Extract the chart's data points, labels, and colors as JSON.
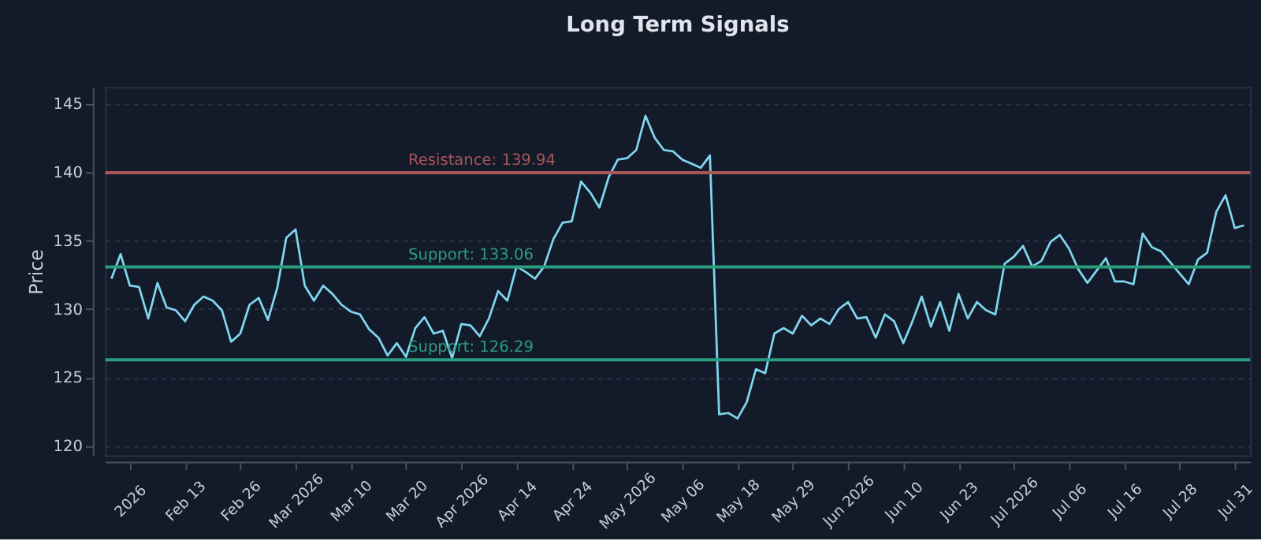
{
  "chart_data": {
    "type": "line",
    "title": "Long Term Signals",
    "ylabel": "Price",
    "categories": [
      null,
      null,
      "2026",
      null,
      null,
      null,
      null,
      null,
      "Feb 13",
      null,
      null,
      null,
      null,
      null,
      "Feb 26",
      null,
      null,
      null,
      null,
      null,
      "Mar 2026",
      null,
      null,
      null,
      null,
      null,
      "Mar 10",
      null,
      null,
      null,
      null,
      null,
      "Mar 20",
      null,
      null,
      null,
      null,
      null,
      "Apr 2026",
      null,
      null,
      null,
      null,
      null,
      "Apr 14",
      null,
      null,
      null,
      null,
      null,
      "Apr 24",
      null,
      null,
      null,
      null,
      null,
      "May 2026",
      null,
      null,
      null,
      null,
      null,
      "May 06",
      null,
      null,
      null,
      null,
      null,
      "May 18",
      null,
      null,
      null,
      null,
      null,
      "May 29",
      null,
      null,
      null,
      null,
      null,
      "Jun 2026",
      null,
      null,
      null,
      null,
      null,
      "Jun 10",
      null,
      null,
      null,
      null,
      null,
      "Jun 23",
      null,
      null,
      null,
      null,
      null,
      "Jul 2026",
      null,
      null,
      null,
      null,
      null,
      "Jul 06",
      null,
      null,
      null,
      null,
      null,
      "Jul 16",
      null,
      null,
      null,
      null,
      null,
      "Jul 28",
      null,
      null,
      null,
      null,
      null,
      "Jul 31",
      null
    ],
    "series": [
      {
        "color": "#7fd6ee",
        "values": [
          132.2,
          134.0,
          131.7,
          131.6,
          129.3,
          131.9,
          130.1,
          129.9,
          129.1,
          130.3,
          130.9,
          130.6,
          129.9,
          127.6,
          128.2,
          130.3,
          130.8,
          129.2,
          131.5,
          135.2,
          135.8,
          131.7,
          130.6,
          131.7,
          131.1,
          130.3,
          129.8,
          129.6,
          128.5,
          127.9,
          126.6,
          127.5,
          126.5,
          128.6,
          129.4,
          128.2,
          128.4,
          126.4,
          128.9,
          128.8,
          128.0,
          129.3,
          131.3,
          130.6,
          133.1,
          132.7,
          132.2,
          133.1,
          135.1,
          136.3,
          136.4,
          139.3,
          138.5,
          137.4,
          139.6,
          140.9,
          141.0,
          141.6,
          144.1,
          142.5,
          141.6,
          141.5,
          140.9,
          140.6,
          140.3,
          141.2,
          122.3,
          122.4,
          122.0,
          123.2,
          125.6,
          125.3,
          128.2,
          128.6,
          128.2,
          129.5,
          128.8,
          129.3,
          128.9,
          130.0,
          130.5,
          129.3,
          129.4,
          127.9,
          129.6,
          129.1,
          127.5,
          129.1,
          130.9,
          128.7,
          130.5,
          128.4,
          131.1,
          129.3,
          130.5,
          129.9,
          129.6,
          133.3,
          133.8,
          134.6,
          133.1,
          133.5,
          134.9,
          135.4,
          134.4,
          132.9,
          131.9,
          132.8,
          133.7,
          132.0,
          132.0,
          131.8,
          135.5,
          134.5,
          134.2,
          133.4,
          132.6,
          131.8,
          133.6,
          134.1,
          137.1,
          138.3,
          135.9,
          136.1
        ]
      }
    ],
    "ylim": [
      119.3,
      146.2
    ],
    "yticks": [
      120,
      125,
      130,
      135,
      140,
      145
    ],
    "grid": "y",
    "marker": "none",
    "line_style": "solid",
    "ref_lines": [
      {
        "axis": "y",
        "value": 139.94,
        "label": "Resistance: 139.94",
        "color": "#a85656"
      },
      {
        "axis": "y",
        "value": 133.06,
        "label": "Support: 133.06",
        "color": "#2a9d7f"
      },
      {
        "axis": "y",
        "value": 126.29,
        "label": "Support: 126.29",
        "color": "#2a9d7f"
      }
    ]
  }
}
